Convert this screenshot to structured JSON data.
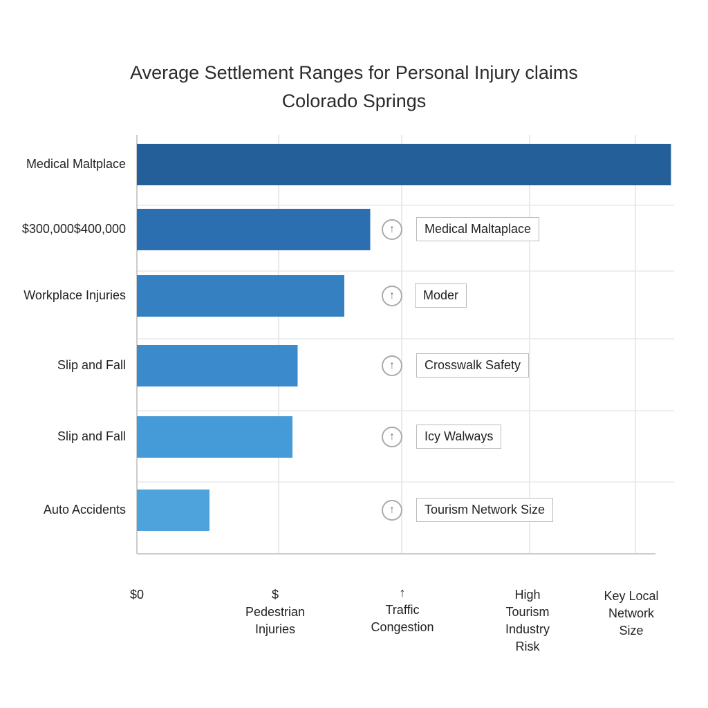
{
  "chart_data": {
    "type": "bar",
    "orientation": "horizontal",
    "title": "Average Settlement Ranges for Personal Injury claims",
    "subtitle": "Colorado Springs",
    "categories": [
      "Medical Maltplace",
      "$300,000$400,000",
      "Workplace Injuries",
      "Slip and Fall",
      "Slip and Fall",
      "Auto Accidents"
    ],
    "values": [
      103,
      45,
      40,
      31,
      30,
      14
    ],
    "value_unit": "percent of axis width (no numeric scale printed)",
    "xlim": [
      0,
      100
    ],
    "x_tick_labels": [
      "$0",
      "$\nPedestrian\nInjuries",
      "↑\nTraffic\nCongestion",
      "High\nTourism\nIndustry\nRisk",
      "Key Local\nNetwork\nSize"
    ],
    "annotations": [
      "",
      "Medical Maltaplace",
      "Moder",
      "Crosswalk Safety",
      "Icy Walways",
      "Tourism Network Size"
    ],
    "annotation_icon": "arrow-up-circle-icon",
    "grid": true,
    "colors": [
      "#245f9a",
      "#2c6fb0",
      "#3580c0",
      "#3b8acb",
      "#449bd8",
      "#4ea3dd"
    ]
  }
}
